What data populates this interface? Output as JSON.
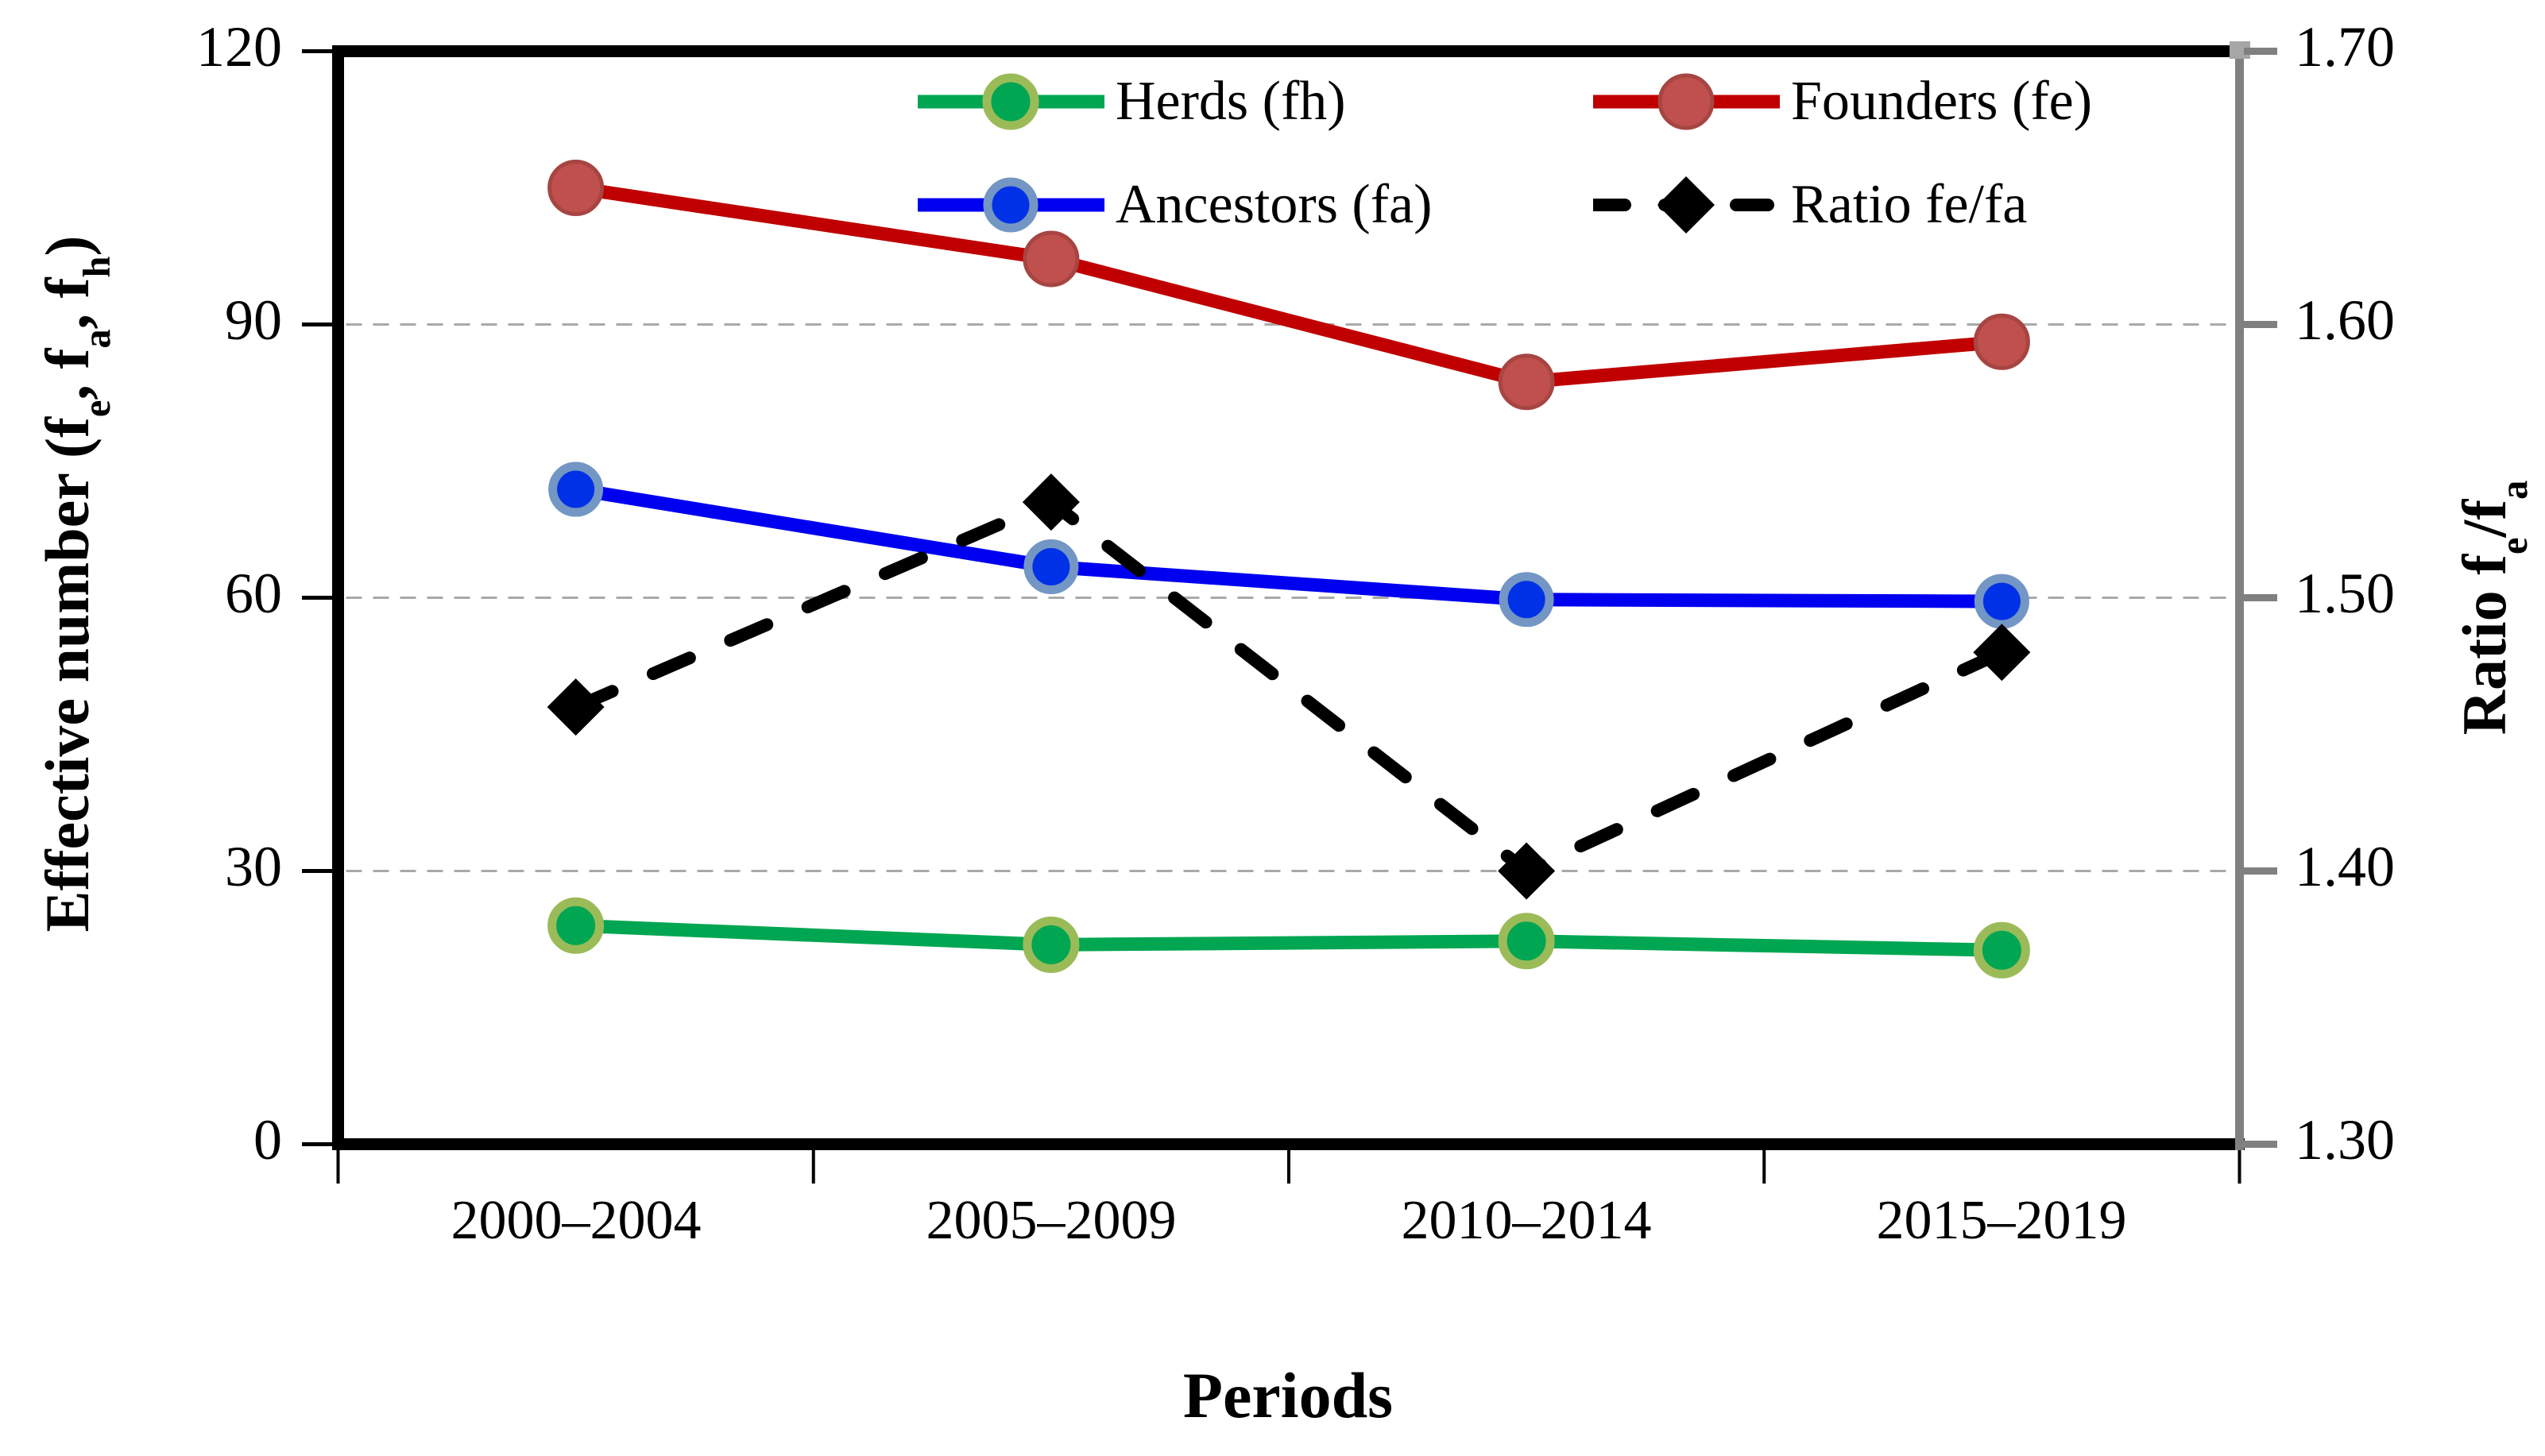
{
  "chart_data": {
    "type": "line",
    "title": "",
    "categories": [
      "2000–2004",
      "2005–2009",
      "2010–2014",
      "2015–2019"
    ],
    "x_axis": {
      "title": "Periods",
      "tick_labels": [
        "2000–2004",
        "2005–2009",
        "2010–2014",
        "2015–2019"
      ]
    },
    "left_axis": {
      "title_text": "Effective number (fe, fa, fh)",
      "title_parts": [
        "Effective number (f",
        "e",
        ", f",
        "a",
        ", f",
        "h",
        ")"
      ],
      "ticks": [
        "0",
        "30",
        "60",
        "90",
        "120"
      ],
      "range": [
        0,
        120
      ]
    },
    "right_axis": {
      "title_text": "Ratio fe/fa",
      "title_parts": [
        "Ratio f",
        "e",
        "/f",
        "a"
      ],
      "ticks": [
        "1.30",
        "1.40",
        "1.50",
        "1.60",
        "1.70"
      ],
      "range": [
        1.3,
        1.7
      ]
    },
    "grid": {
      "visible": true,
      "values": [
        30,
        60,
        90
      ],
      "color": "#A9A9A9",
      "style": "dashed"
    },
    "colors": {
      "left_spine": "#000000",
      "right_spine": "#808080",
      "right_spine_cap": "#A6A6A6",
      "tick_left": "#000000",
      "tick_right": "#808080"
    },
    "legend": {
      "position": "top-inside-two-columns",
      "entries": [
        {
          "label": "Herds (fh)",
          "series_index": 0
        },
        {
          "label": "Founders (fe)",
          "series_index": 1
        },
        {
          "label": "Ancestors (fa)",
          "series_index": 2
        },
        {
          "label": "Ratio fe/fa",
          "series_index": 3
        }
      ]
    },
    "series": [
      {
        "name": "Herds (fh)",
        "axis": "left",
        "marker": "circle",
        "dashed": false,
        "line_color": "#00A651",
        "marker_fill": "#00A651",
        "marker_ring": "#9BBB59",
        "values": [
          24,
          21.9,
          22.3,
          21.3
        ]
      },
      {
        "name": "Founders (fe)",
        "axis": "left",
        "marker": "circle",
        "dashed": false,
        "line_color": "#C00000",
        "marker_fill": "#C0504D",
        "marker_ring": "#A64542",
        "values": [
          105,
          97.2,
          83.7,
          88.1
        ]
      },
      {
        "name": "Ancestors (fa)",
        "axis": "left",
        "marker": "circle",
        "dashed": false,
        "line_color": "#0000F0",
        "marker_fill": "#0031E6",
        "marker_ring": "#7396C4",
        "values": [
          71.9,
          63.4,
          59.8,
          59.6
        ]
      },
      {
        "name": "Ratio fe/fa",
        "axis": "right",
        "marker": "diamond",
        "dashed": true,
        "line_color": "#000000",
        "marker_fill": "#000000",
        "marker_ring": "#000000",
        "values": [
          1.46,
          1.535,
          1.4,
          1.48
        ]
      }
    ]
  }
}
